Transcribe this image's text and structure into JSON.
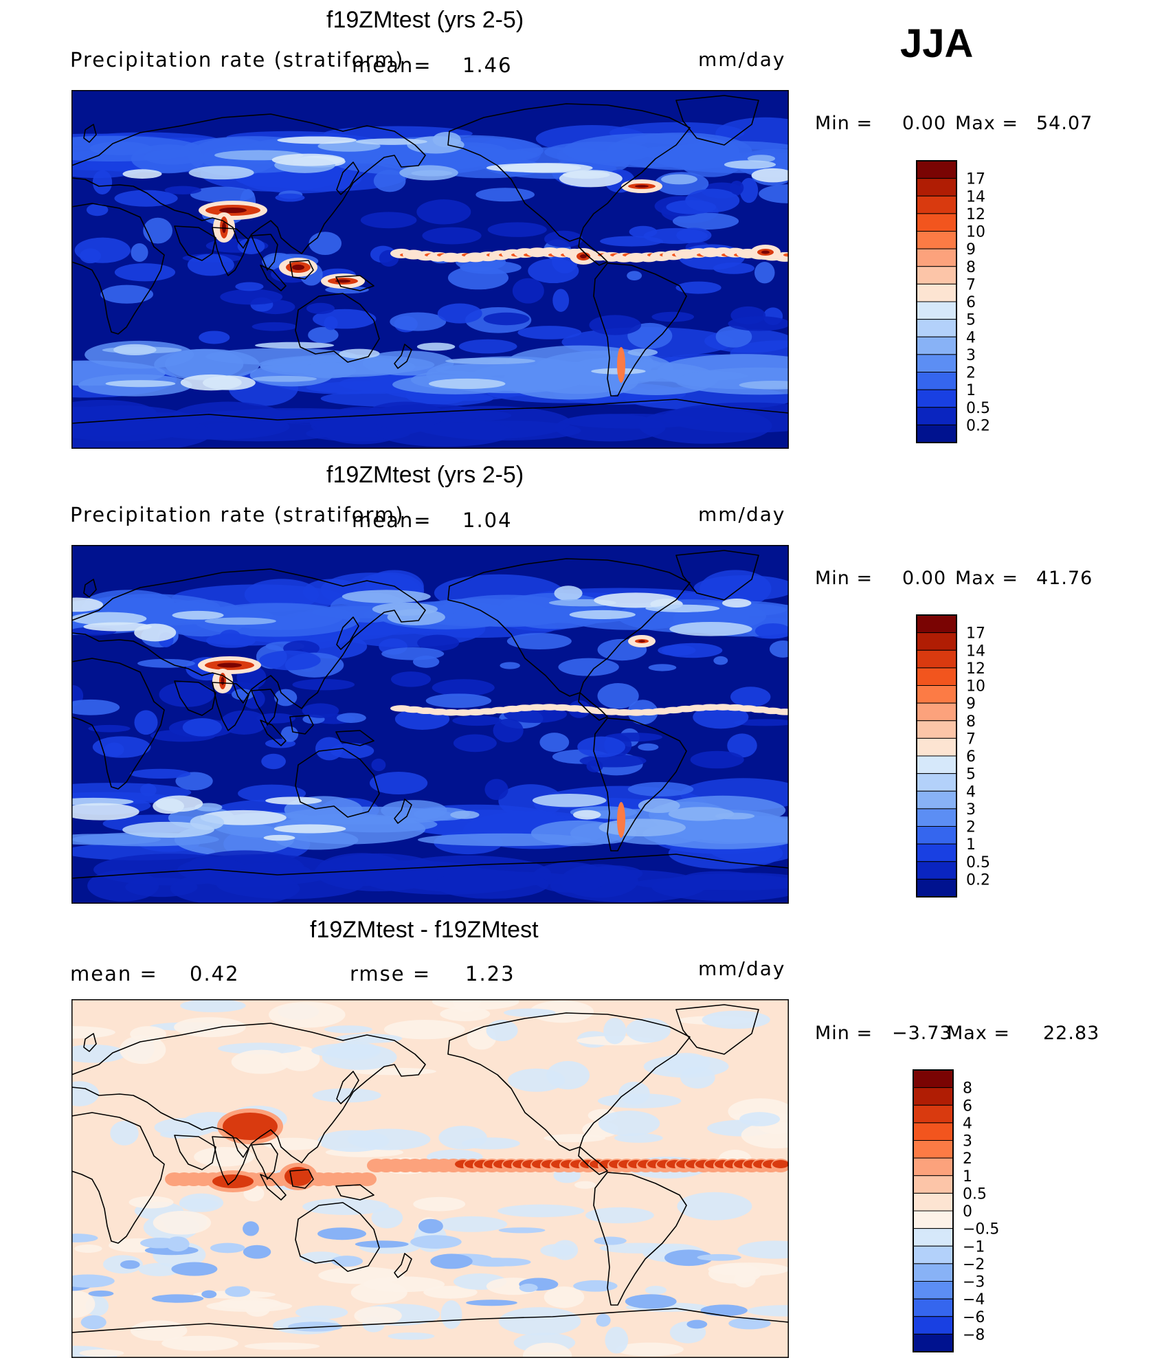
{
  "season": "JJA",
  "units": "mm/day",
  "panels": [
    {
      "title": "f19ZMtest (yrs 2-5)",
      "field": "Precipitation rate (stratiform)",
      "mean_label": "mean=",
      "mean": "1.46",
      "min_label": "Min =",
      "min": "0.00",
      "max_label": "Max =",
      "max": "54.07"
    },
    {
      "title": "f19ZMtest (yrs 2-5)",
      "field": "Precipitation rate (stratiform)",
      "mean_label": "mean=",
      "mean": "1.04",
      "min_label": "Min =",
      "min": "0.00",
      "max_label": "Max =",
      "max": "41.76"
    },
    {
      "title": "f19ZMtest - f19ZMtest",
      "mean_label": "mean =",
      "mean": "0.42",
      "rmse_label": "rmse =",
      "rmse": "1.23",
      "min_label": "Min =",
      "min": "−3.73",
      "max_label": "Max =",
      "max": "22.83"
    }
  ],
  "chart_data": [
    {
      "type": "heatmap",
      "title": "f19ZMtest (yrs 2-5)",
      "variable": "Precipitation rate (stratiform)",
      "units": "mm/day",
      "mean": 1.46,
      "min": 0.0,
      "max": 54.07,
      "colorbar_levels": [
        "17",
        "14",
        "12",
        "10",
        "9",
        "8",
        "7",
        "6",
        "5",
        "4",
        "3",
        "2",
        "1",
        "0.5",
        "0.2"
      ],
      "colors": [
        "#7a0403",
        "#b01d04",
        "#d93a0f",
        "#f2551e",
        "#fc7b45",
        "#fca27c",
        "#fcc5a8",
        "#fde4d2",
        "#d6e8fa",
        "#b3d1fa",
        "#88b2f6",
        "#5c8ef4",
        "#3566ee",
        "#1940e2",
        "#0a25c0",
        "#00128f"
      ]
    },
    {
      "type": "heatmap",
      "title": "f19ZMtest (yrs 2-5)",
      "variable": "Precipitation rate (stratiform)",
      "units": "mm/day",
      "mean": 1.04,
      "min": 0.0,
      "max": 41.76,
      "colorbar_levels": [
        "17",
        "14",
        "12",
        "10",
        "9",
        "8",
        "7",
        "6",
        "5",
        "4",
        "3",
        "2",
        "1",
        "0.5",
        "0.2"
      ],
      "colors": [
        "#7a0403",
        "#b01d04",
        "#d93a0f",
        "#f2551e",
        "#fc7b45",
        "#fca27c",
        "#fcc5a8",
        "#fde4d2",
        "#d6e8fa",
        "#b3d1fa",
        "#88b2f6",
        "#5c8ef4",
        "#3566ee",
        "#1940e2",
        "#0a25c0",
        "#00128f"
      ]
    },
    {
      "type": "heatmap",
      "title": "f19ZMtest - f19ZMtest",
      "units": "mm/day",
      "mean": 0.42,
      "rmse": 1.23,
      "min": -3.73,
      "max": 22.83,
      "colorbar_levels": [
        "8",
        "6",
        "4",
        "3",
        "2",
        "1",
        "0.5",
        "0",
        "−0.5",
        "−1",
        "−2",
        "−3",
        "−4",
        "−6",
        "−8"
      ],
      "colors": [
        "#7a0403",
        "#b01d04",
        "#d93a0f",
        "#f2551e",
        "#fc7b45",
        "#fca27c",
        "#fcc5a8",
        "#fde4d2",
        "#fdf2e8",
        "#d6e8fa",
        "#b3d1fa",
        "#88b2f6",
        "#5c8ef4",
        "#3566ee",
        "#1940e2",
        "#00128f"
      ]
    }
  ]
}
